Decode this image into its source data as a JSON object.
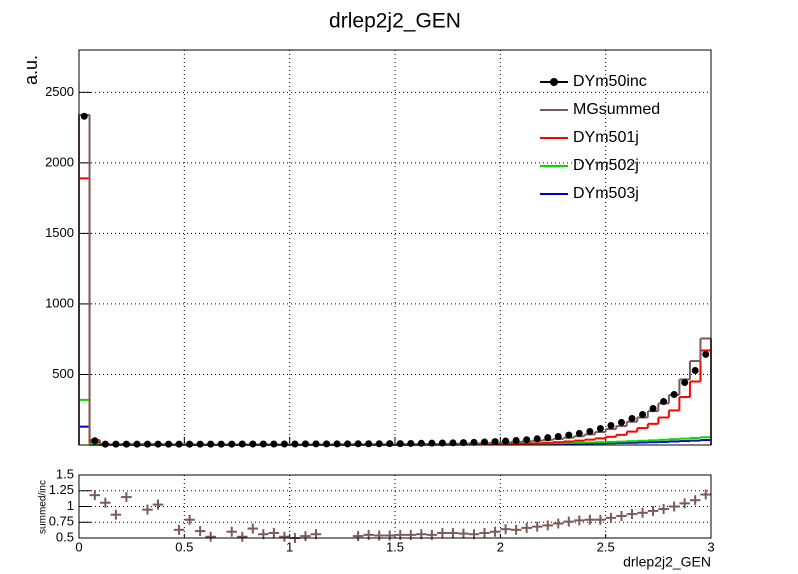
{
  "chart_data": [
    {
      "type": "histogram",
      "title": "drlep2j2_GEN",
      "ylabel": "a.u.",
      "bins": [
        0,
        0.05,
        0.1,
        0.15,
        0.2,
        0.25,
        0.3,
        0.35,
        0.4,
        0.45,
        0.5,
        0.55,
        0.6,
        0.65,
        0.7,
        0.75,
        0.8,
        0.85,
        0.9,
        0.95,
        1,
        1.05,
        1.1,
        1.15,
        1.2,
        1.25,
        1.3,
        1.35,
        1.4,
        1.45,
        1.5,
        1.55,
        1.6,
        1.65,
        1.7,
        1.75,
        1.8,
        1.85,
        1.9,
        1.95,
        2,
        2.05,
        2.1,
        2.15,
        2.2,
        2.25,
        2.3,
        2.35,
        2.4,
        2.45,
        2.5,
        2.55,
        2.6,
        2.65,
        2.7,
        2.75,
        2.8,
        2.85,
        2.9,
        2.95,
        3
      ],
      "series": [
        {
          "name": "DYm50inc",
          "color": "#000000",
          "style": "points",
          "values": [
            2330,
            30,
            6,
            6,
            6,
            6,
            6,
            6,
            6,
            6,
            6,
            6,
            6,
            6,
            6,
            7,
            7,
            7,
            7,
            7,
            7,
            8,
            8,
            8,
            8,
            8,
            9,
            9,
            9,
            10,
            10,
            11,
            12,
            13,
            14,
            15,
            17,
            19,
            21,
            24,
            28,
            32,
            37,
            44,
            52,
            60,
            70,
            82,
            96,
            117,
            138,
            160,
            188,
            216,
            259,
            308,
            358,
            443,
            528,
            642
          ]
        },
        {
          "name": "MGsummed",
          "color": "#7b5a5a",
          "style": "step",
          "values": [
            2340,
            35,
            6,
            5,
            7,
            5,
            6,
            6,
            5,
            4,
            5,
            4,
            3,
            3,
            4,
            4,
            4,
            5,
            4,
            4,
            4,
            4,
            4,
            4,
            5,
            5,
            5,
            5,
            5,
            5,
            6,
            6,
            7,
            7,
            8,
            8,
            10,
            11,
            13,
            15,
            18,
            21,
            25,
            30,
            36,
            43,
            52,
            62,
            75,
            92,
            113,
            134,
            165,
            195,
            240,
            295,
            355,
            465,
            595,
            755
          ]
        },
        {
          "name": "DYm501j",
          "color": "#ff0000",
          "style": "step",
          "values": [
            1890,
            20,
            1,
            1,
            1,
            1,
            1,
            1,
            1,
            1,
            1,
            1,
            1,
            1,
            1,
            1,
            1,
            1,
            1,
            1,
            1,
            1,
            1,
            1,
            1,
            1,
            1,
            1,
            1,
            1,
            1,
            1,
            1,
            2,
            2,
            2,
            3,
            3,
            4,
            4,
            5,
            7,
            9,
            12,
            16,
            20,
            25,
            31,
            38,
            47,
            58,
            72,
            95,
            120,
            150,
            195,
            245,
            340,
            450,
            670
          ]
        },
        {
          "name": "DYm502j",
          "color": "#00dd00",
          "style": "step",
          "values": [
            320,
            3,
            1,
            1,
            1,
            1,
            1,
            1,
            1,
            1,
            1,
            1,
            1,
            1,
            1,
            1,
            1,
            1,
            1,
            1,
            2,
            2,
            2,
            2,
            2,
            2,
            2,
            3,
            3,
            3,
            3,
            4,
            4,
            4,
            5,
            5,
            6,
            6,
            7,
            7,
            8,
            9,
            10,
            11,
            12,
            13,
            15,
            16,
            18,
            20,
            22,
            24,
            27,
            30,
            33,
            37,
            41,
            45,
            50,
            55
          ]
        },
        {
          "name": "DYm503j",
          "color": "#0000cc",
          "style": "step",
          "values": [
            130,
            2,
            1,
            1,
            1,
            1,
            1,
            1,
            1,
            1,
            1,
            1,
            1,
            1,
            1,
            1,
            1,
            1,
            1,
            1,
            1,
            1,
            1,
            1,
            1,
            1,
            1,
            2,
            2,
            2,
            2,
            2,
            3,
            3,
            3,
            3,
            4,
            4,
            4,
            5,
            5,
            6,
            6,
            7,
            8,
            8,
            9,
            10,
            11,
            12,
            13,
            15,
            16,
            18,
            20,
            22,
            25,
            28,
            31,
            35
          ]
        }
      ],
      "xlim": [
        0,
        3
      ],
      "ylim": [
        0,
        2800
      ],
      "xticks": [
        0,
        0.5,
        1,
        1.5,
        2,
        2.5,
        3
      ],
      "yticks": [
        500,
        1000,
        1500,
        2000,
        2500
      ],
      "grid": true,
      "legend": "top right"
    },
    {
      "type": "histogram",
      "ylabel": "summed/inc",
      "xlabel": "drlep2j2_GEN",
      "bins": [
        0,
        0.05,
        0.1,
        0.15,
        0.2,
        0.25,
        0.3,
        0.35,
        0.4,
        0.45,
        0.5,
        0.55,
        0.6,
        0.65,
        0.7,
        0.75,
        0.8,
        0.85,
        0.9,
        0.95,
        1,
        1.05,
        1.1,
        1.15,
        1.2,
        1.25,
        1.3,
        1.35,
        1.4,
        1.45,
        1.5,
        1.55,
        1.6,
        1.65,
        1.7,
        1.75,
        1.8,
        1.85,
        1.9,
        1.95,
        2,
        2.05,
        2.1,
        2.15,
        2.2,
        2.25,
        2.3,
        2.35,
        2.4,
        2.45,
        2.5,
        2.55,
        2.6,
        2.65,
        2.7,
        2.75,
        2.8,
        2.85,
        2.9,
        2.95,
        3
      ],
      "series": [
        {
          "color": "#7b5a5a",
          "style": "crosses",
          "values": [
            null,
            1.18,
            1.06,
            0.87,
            1.15,
            null,
            0.95,
            1.03,
            null,
            0.63,
            0.79,
            0.61,
            0.52,
            null,
            0.6,
            0.52,
            0.65,
            0.56,
            0.58,
            0.52,
            0.5,
            0.53,
            0.56,
            null,
            null,
            null,
            0.53,
            0.55,
            0.54,
            0.54,
            0.55,
            0.55,
            0.56,
            0.55,
            0.58,
            0.58,
            0.57,
            0.56,
            0.58,
            0.6,
            0.64,
            0.63,
            0.66,
            0.68,
            0.7,
            0.73,
            0.76,
            0.78,
            0.79,
            0.79,
            0.82,
            0.85,
            0.88,
            0.9,
            0.93,
            0.96,
            1.0,
            1.05,
            1.1,
            1.19
          ]
        }
      ],
      "xlim": [
        0,
        3
      ],
      "ylim": [
        0.5,
        1.5
      ],
      "xticks": [
        0,
        0.5,
        1,
        1.5,
        2,
        2.5,
        3
      ],
      "yticks": [
        0.5,
        0.75,
        1,
        1.25,
        1.5
      ],
      "grid": true
    }
  ]
}
